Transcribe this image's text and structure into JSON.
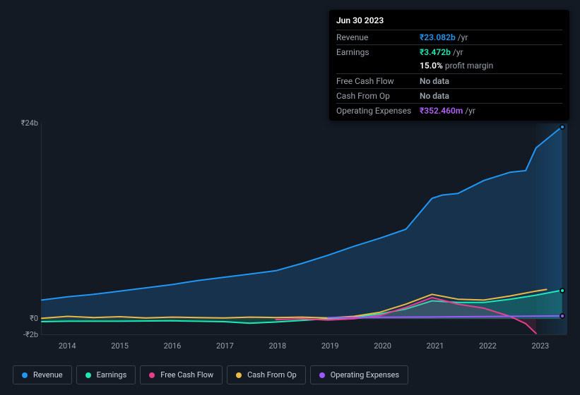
{
  "tooltip": {
    "date": "Jun 30 2023",
    "rows": [
      {
        "label": "Revenue",
        "value": "₹23.082b",
        "unit": "/yr",
        "color": "#2196f3"
      },
      {
        "label": "Earnings",
        "value": "₹3.472b",
        "unit": "/yr",
        "color": "#1de9b6"
      },
      {
        "label": "Free Cash Flow",
        "value": "No data",
        "unit": "",
        "color": "#9aa2ab"
      },
      {
        "label": "Cash From Op",
        "value": "No data",
        "unit": "",
        "color": "#9aa2ab"
      },
      {
        "label": "Operating Expenses",
        "value": "₹352.460m",
        "unit": "/yr",
        "color": "#b264ff"
      }
    ],
    "extra": {
      "value": "15.0%",
      "label": "profit margin"
    }
  },
  "chart": {
    "type": "line",
    "background_color": "#131a23",
    "grid_color": "#2a2f36",
    "label_color": "#9aa2ab",
    "label_fontsize": 11,
    "ylim": [
      -2,
      24
    ],
    "ytick_labels": [
      "-₹2b",
      "₹0",
      "₹24b"
    ],
    "ytick_values": [
      -2,
      0,
      24
    ],
    "xlim": [
      2013.5,
      2023.6
    ],
    "xticks": [
      2014,
      2015,
      2016,
      2017,
      2018,
      2019,
      2020,
      2021,
      2022,
      2023
    ],
    "highlight_from": 2023.0,
    "line_width": 2,
    "marker_size": 8,
    "series": [
      {
        "name": "Revenue",
        "color": "#2196f3",
        "fill_opacity": 0.2,
        "data": [
          [
            2013.5,
            2.3
          ],
          [
            2014,
            2.7
          ],
          [
            2014.5,
            3.0
          ],
          [
            2015,
            3.4
          ],
          [
            2015.5,
            3.8
          ],
          [
            2016,
            4.2
          ],
          [
            2016.5,
            4.7
          ],
          [
            2017,
            5.1
          ],
          [
            2017.5,
            5.5
          ],
          [
            2018,
            5.9
          ],
          [
            2018.5,
            6.8
          ],
          [
            2019,
            7.8
          ],
          [
            2019.5,
            8.9
          ],
          [
            2020,
            9.9
          ],
          [
            2020.5,
            11.0
          ],
          [
            2021,
            14.8
          ],
          [
            2021.2,
            15.2
          ],
          [
            2021.5,
            15.4
          ],
          [
            2022,
            17.0
          ],
          [
            2022.5,
            18.0
          ],
          [
            2022.8,
            18.2
          ],
          [
            2023,
            21.0
          ],
          [
            2023.5,
            23.6
          ]
        ],
        "end_marker": true
      },
      {
        "name": "Earnings",
        "color": "#1de9b6",
        "fill_opacity": 0.2,
        "data": [
          [
            2013.5,
            -0.35
          ],
          [
            2014,
            -0.3
          ],
          [
            2015,
            -0.3
          ],
          [
            2016,
            -0.25
          ],
          [
            2017,
            -0.35
          ],
          [
            2017.5,
            -0.55
          ],
          [
            2018,
            -0.4
          ],
          [
            2018.5,
            -0.2
          ],
          [
            2019,
            0.0
          ],
          [
            2019.5,
            0.2
          ],
          [
            2020,
            0.6
          ],
          [
            2020.5,
            1.2
          ],
          [
            2021,
            2.2
          ],
          [
            2021.5,
            2.0
          ],
          [
            2022,
            2.0
          ],
          [
            2022.5,
            2.4
          ],
          [
            2023,
            2.9
          ],
          [
            2023.5,
            3.5
          ]
        ],
        "end_marker": true
      },
      {
        "name": "Free Cash Flow",
        "color": "#e83e8c",
        "fill_opacity": 0.15,
        "data": [
          [
            2018,
            -0.1
          ],
          [
            2018.5,
            0.0
          ],
          [
            2019,
            -0.15
          ],
          [
            2019.5,
            0.0
          ],
          [
            2020,
            0.4
          ],
          [
            2020.5,
            1.4
          ],
          [
            2021,
            2.6
          ],
          [
            2021.5,
            1.8
          ],
          [
            2022,
            1.3
          ],
          [
            2022.5,
            0.3
          ],
          [
            2022.8,
            -0.6
          ],
          [
            2023,
            -1.8
          ]
        ],
        "end_marker": false
      },
      {
        "name": "Cash From Op",
        "color": "#eeb844",
        "fill_opacity": 0.0,
        "data": [
          [
            2013.5,
            0.05
          ],
          [
            2014,
            0.3
          ],
          [
            2014.5,
            0.15
          ],
          [
            2015,
            0.25
          ],
          [
            2015.5,
            0.1
          ],
          [
            2016,
            0.2
          ],
          [
            2016.5,
            0.15
          ],
          [
            2017,
            0.1
          ],
          [
            2017.5,
            0.2
          ],
          [
            2018,
            0.15
          ],
          [
            2018.5,
            0.2
          ],
          [
            2019,
            0.1
          ],
          [
            2019.5,
            0.3
          ],
          [
            2020,
            0.8
          ],
          [
            2020.5,
            1.8
          ],
          [
            2021,
            3.0
          ],
          [
            2021.5,
            2.4
          ],
          [
            2022,
            2.3
          ],
          [
            2022.5,
            2.8
          ],
          [
            2023,
            3.4
          ],
          [
            2023.2,
            3.6
          ]
        ],
        "end_marker": false
      },
      {
        "name": "Operating Expenses",
        "color": "#9b59ff",
        "fill_opacity": 0.0,
        "data": [
          [
            2019,
            0.15
          ],
          [
            2020,
            0.18
          ],
          [
            2021,
            0.22
          ],
          [
            2022,
            0.28
          ],
          [
            2023,
            0.33
          ],
          [
            2023.5,
            0.35
          ]
        ],
        "end_marker": true
      }
    ]
  },
  "legend": [
    {
      "label": "Revenue",
      "color": "#2196f3"
    },
    {
      "label": "Earnings",
      "color": "#1de9b6"
    },
    {
      "label": "Free Cash Flow",
      "color": "#e83e8c"
    },
    {
      "label": "Cash From Op",
      "color": "#eeb844"
    },
    {
      "label": "Operating Expenses",
      "color": "#9b59ff"
    }
  ]
}
